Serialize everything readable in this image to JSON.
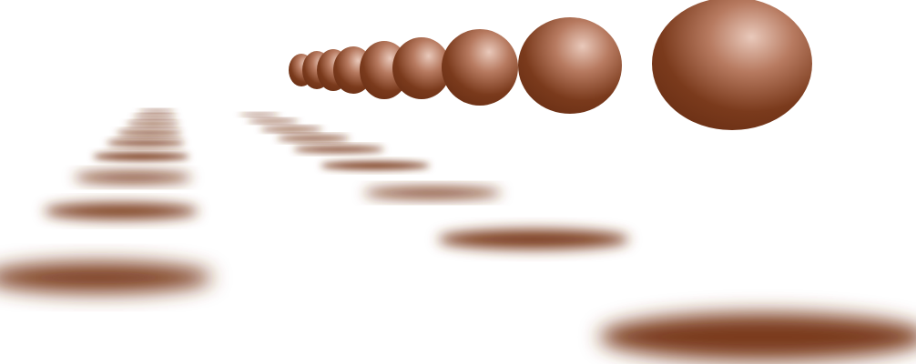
{
  "scene": {
    "background": "#ffffff",
    "color": "#7a3a1c",
    "highlight": "#e8c7b9",
    "spheres": [
      {
        "name": "sphere-1"
      },
      {
        "name": "sphere-2"
      },
      {
        "name": "sphere-3"
      },
      {
        "name": "sphere-4"
      },
      {
        "name": "sphere-5"
      },
      {
        "name": "sphere-6"
      },
      {
        "name": "sphere-7"
      },
      {
        "name": "sphere-8"
      },
      {
        "name": "sphere-9"
      }
    ],
    "shadow_rows": [
      {
        "name": "left-shadow-row"
      },
      {
        "name": "center-shadow-row"
      }
    ]
  }
}
